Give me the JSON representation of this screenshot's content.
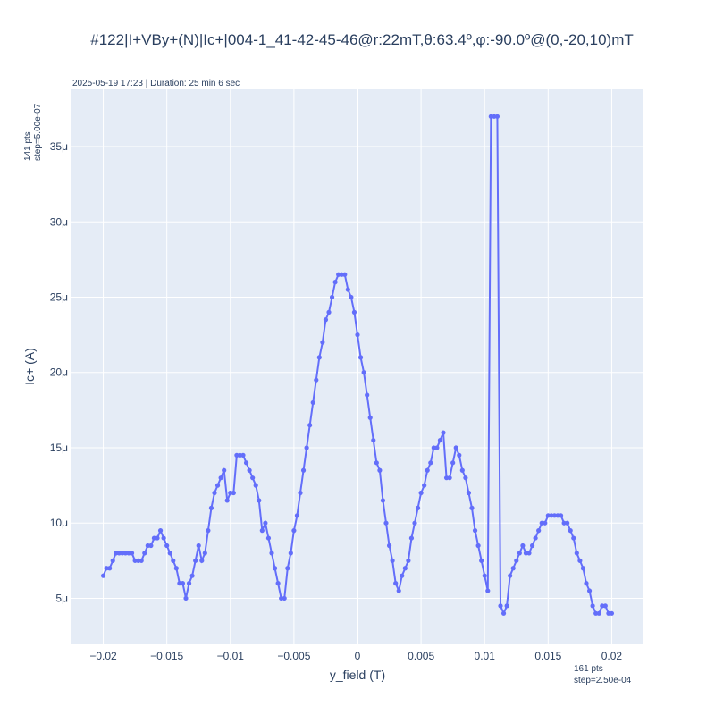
{
  "chart_data": {
    "type": "line",
    "title": "#122|I+VBy+(N)|Ic+|004-1_41-42-45-46@r:22mT,θ:63.4º,φ:-90.0º@(0,-20,10)mT",
    "annotation_top": "2025-05-19 17:23 | Duration: 25 min 6 sec",
    "annotation_y_pts": "141 pts",
    "annotation_y_step": "step=5.00e-07",
    "annotation_x_pts": "161 pts",
    "annotation_x_step": "step=2.50e-04",
    "xlabel": "y_field (T)",
    "ylabel": "Ic+ (A)",
    "xlim": [
      -0.0225,
      0.0225
    ],
    "ylim": [
      2.0,
      38.8
    ],
    "x_ticks": [
      {
        "v": -0.02,
        "label": "−0.02"
      },
      {
        "v": -0.015,
        "label": "−0.015"
      },
      {
        "v": -0.01,
        "label": "−0.01"
      },
      {
        "v": -0.005,
        "label": "−0.005"
      },
      {
        "v": 0,
        "label": "0"
      },
      {
        "v": 0.005,
        "label": "0.005"
      },
      {
        "v": 0.01,
        "label": "0.01"
      },
      {
        "v": 0.015,
        "label": "0.015"
      },
      {
        "v": 0.02,
        "label": "0.02"
      }
    ],
    "y_ticks": [
      {
        "v": 5,
        "label": "5μ"
      },
      {
        "v": 10,
        "label": "10μ"
      },
      {
        "v": 15,
        "label": "15μ"
      },
      {
        "v": 20,
        "label": "20μ"
      },
      {
        "v": 25,
        "label": "25μ"
      },
      {
        "v": 30,
        "label": "30μ"
      },
      {
        "v": 35,
        "label": "35μ"
      }
    ],
    "y_unit": "μA",
    "grid": true,
    "series": [
      {
        "color": "#636efa",
        "x": [
          -0.02,
          -0.01975,
          -0.0195,
          -0.01925,
          -0.019,
          -0.01875,
          -0.0185,
          -0.01825,
          -0.018,
          -0.01775,
          -0.0175,
          -0.01725,
          -0.017,
          -0.01675,
          -0.0165,
          -0.01625,
          -0.016,
          -0.01575,
          -0.0155,
          -0.01525,
          -0.015,
          -0.01475,
          -0.0145,
          -0.01425,
          -0.014,
          -0.01375,
          -0.0135,
          -0.01325,
          -0.013,
          -0.01275,
          -0.0125,
          -0.01225,
          -0.012,
          -0.01175,
          -0.0115,
          -0.01125,
          -0.011,
          -0.01075,
          -0.0105,
          -0.01025,
          -0.01,
          -0.00975,
          -0.0095,
          -0.00925,
          -0.009,
          -0.00875,
          -0.0085,
          -0.00825,
          -0.008,
          -0.00775,
          -0.0075,
          -0.00725,
          -0.007,
          -0.00675,
          -0.0065,
          -0.00625,
          -0.006,
          -0.00575,
          -0.0055,
          -0.00525,
          -0.005,
          -0.00475,
          -0.0045,
          -0.00425,
          -0.004,
          -0.00375,
          -0.0035,
          -0.00325,
          -0.003,
          -0.00275,
          -0.0025,
          -0.00225,
          -0.002,
          -0.00175,
          -0.0015,
          -0.00125,
          -0.001,
          -0.00075,
          -0.0005,
          -0.00025,
          0,
          0.00025,
          0.0005,
          0.00075,
          0.001,
          0.00125,
          0.0015,
          0.00175,
          0.002,
          0.00225,
          0.0025,
          0.00275,
          0.003,
          0.00325,
          0.0035,
          0.00375,
          0.004,
          0.00425,
          0.0045,
          0.00475,
          0.005,
          0.00525,
          0.0055,
          0.00575,
          0.006,
          0.00625,
          0.0065,
          0.00675,
          0.007,
          0.00725,
          0.0075,
          0.00775,
          0.008,
          0.00825,
          0.0085,
          0.00875,
          0.009,
          0.00925,
          0.0095,
          0.00975,
          0.01,
          0.01025,
          0.0105,
          0.01075,
          0.011,
          0.01125,
          0.0115,
          0.01175,
          0.012,
          0.01225,
          0.0125,
          0.01275,
          0.013,
          0.01325,
          0.0135,
          0.01375,
          0.014,
          0.01425,
          0.0145,
          0.01475,
          0.015,
          0.01525,
          0.0155,
          0.01575,
          0.016,
          0.01625,
          0.0165,
          0.01675,
          0.017,
          0.01725,
          0.0175,
          0.01775,
          0.018,
          0.01825,
          0.0185,
          0.01875,
          0.019,
          0.01925,
          0.0195,
          0.01975,
          0.02
        ],
        "y": [
          6.5,
          7,
          7,
          7.5,
          8,
          8,
          8,
          8,
          8,
          8,
          7.5,
          7.5,
          7.5,
          8,
          8.5,
          8.5,
          9,
          9,
          9.5,
          9,
          8.5,
          8,
          7.5,
          7,
          6,
          6,
          5,
          6,
          6.5,
          7.5,
          8.5,
          7.5,
          8,
          9.5,
          11,
          12,
          12.5,
          13,
          13.5,
          11.5,
          12,
          12,
          14.5,
          14.5,
          14.5,
          14,
          13.5,
          13,
          12.5,
          11.5,
          9.5,
          10,
          9,
          8,
          7,
          6,
          5,
          5,
          7,
          8,
          9.5,
          10.5,
          12,
          13.5,
          15,
          16.5,
          18,
          19.5,
          21,
          22,
          23.5,
          24,
          25,
          26,
          26.5,
          26.5,
          26.5,
          25.5,
          25,
          24,
          22.5,
          21,
          20,
          18.5,
          17,
          15.5,
          14,
          13.5,
          11.5,
          10,
          8.5,
          7.5,
          6,
          5.5,
          6.5,
          7,
          7.5,
          9,
          10,
          11,
          12,
          12.5,
          13.5,
          14,
          15,
          15,
          15.5,
          16,
          13,
          13,
          14,
          15,
          14.5,
          13.5,
          13,
          12,
          11,
          9.5,
          8.5,
          7.5,
          6.5,
          5.5,
          37,
          37,
          37,
          4.5,
          4,
          4.5,
          6.5,
          7,
          7.5,
          8,
          8.5,
          8,
          8,
          8.5,
          9,
          9.5,
          10,
          10,
          10.5,
          10.5,
          10.5,
          10.5,
          10.5,
          10,
          10,
          9.5,
          9,
          8,
          7.5,
          7,
          6,
          5.5,
          4.5,
          4,
          4,
          4.5,
          4.5,
          4,
          4
        ]
      }
    ]
  }
}
